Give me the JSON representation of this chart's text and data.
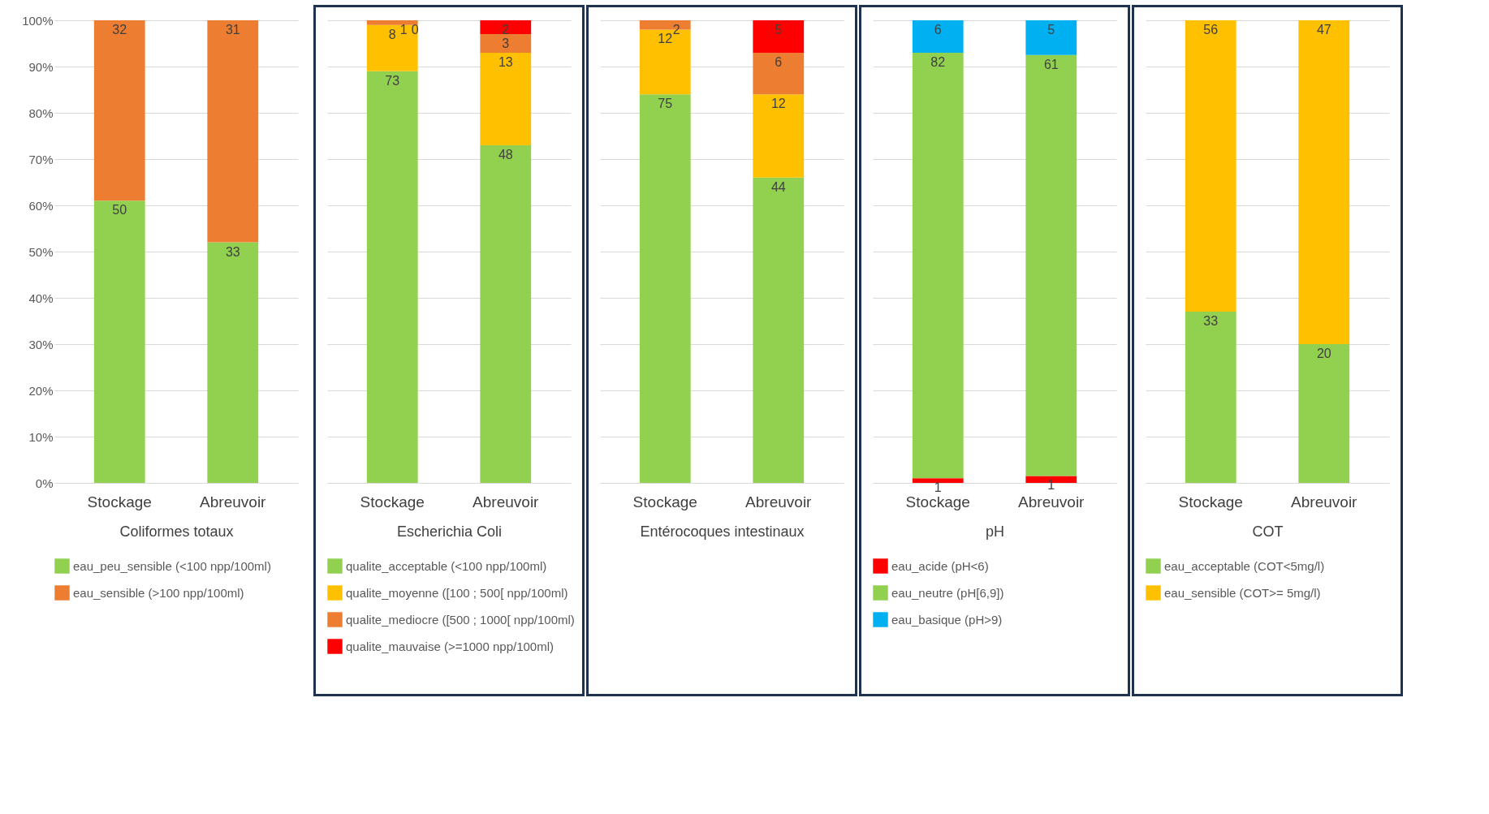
{
  "chart_data": [
    {
      "type": "bar",
      "stacked": true,
      "xlabel": "Coliformes totaux",
      "categories": [
        "Stockage",
        "Abreuvoir"
      ],
      "ylim": [
        0,
        100
      ],
      "yticks": [
        {
          "value": 0,
          "label": "0%"
        },
        {
          "value": 10,
          "label": "10%"
        },
        {
          "value": 20,
          "label": "20%"
        },
        {
          "value": 30,
          "label": "30%"
        },
        {
          "value": 40,
          "label": "40%"
        },
        {
          "value": 50,
          "label": "50%"
        },
        {
          "value": 60,
          "label": "60%"
        },
        {
          "value": 70,
          "label": "70%"
        },
        {
          "value": 80,
          "label": "80%"
        },
        {
          "value": 90,
          "label": "90%"
        },
        {
          "value": 100,
          "label": "100%"
        }
      ],
      "grid": "y",
      "legend": "bottom",
      "series": [
        {
          "name": "eau_peu_sensible (<100 npp/100ml)",
          "color": "#92d050",
          "values": [
            61,
            52
          ]
        },
        {
          "name": "eau_sensible (>100 npp/100ml)",
          "color": "#ed7d31",
          "values": [
            39,
            48
          ]
        }
      ],
      "annotations": [
        {
          "text": "50",
          "x": "Stockage",
          "y": 61
        },
        {
          "text": "32",
          "x": "Stockage",
          "y": 100
        },
        {
          "text": "33",
          "x": "Abreuvoir",
          "y": 52
        },
        {
          "text": "31",
          "x": "Abreuvoir",
          "y": 100
        }
      ]
    },
    {
      "type": "bar",
      "stacked": true,
      "xlabel": "Escherichia Coli",
      "categories": [
        "Stockage",
        "Abreuvoir"
      ],
      "ylim": [
        0,
        100
      ],
      "yticks": [
        0,
        10,
        20,
        30,
        40,
        50,
        60,
        70,
        80,
        90,
        100
      ],
      "tick_labels": "x",
      "grid": "y",
      "legend": "bottom",
      "series": [
        {
          "name": "qualite_acceptable (<100 npp/100ml)",
          "color": "#92d050",
          "values": [
            89,
            73
          ]
        },
        {
          "name": "qualite_moyenne ([100 ; 500[ npp/100ml)",
          "color": "#ffc000",
          "values": [
            10,
            20
          ]
        },
        {
          "name": "qualite_mediocre ([500 ; 1000[ npp/100ml)",
          "color": "#ed7d31",
          "values": [
            1,
            4
          ]
        },
        {
          "name": "qualite_mauvaise (>=1000 npp/100ml)",
          "color": "#ff0000",
          "values": [
            0,
            3
          ]
        }
      ],
      "annotations": [
        {
          "text": "73",
          "x": "Stockage",
          "y": 89
        },
        {
          "text": "8",
          "x": "Stockage",
          "y": 99
        },
        {
          "text": "1",
          "x": "Stockage",
          "y": 100
        },
        {
          "text": "0",
          "x": "Stockage",
          "y": 100
        },
        {
          "text": "48",
          "x": "Abreuvoir",
          "y": 73
        },
        {
          "text": "13",
          "x": "Abreuvoir",
          "y": 93
        },
        {
          "text": "3",
          "x": "Abreuvoir",
          "y": 97
        },
        {
          "text": "2",
          "x": "Abreuvoir",
          "y": 100
        }
      ]
    },
    {
      "type": "bar",
      "stacked": true,
      "xlabel": "Entérocoques intestinaux",
      "categories": [
        "Stockage",
        "Abreuvoir"
      ],
      "ylim": [
        0,
        100
      ],
      "yticks": [
        0,
        10,
        20,
        30,
        40,
        50,
        60,
        70,
        80,
        90,
        100
      ],
      "tick_labels": "x",
      "grid": "y",
      "series": [
        {
          "color": "#92d050",
          "values": [
            84,
            66
          ]
        },
        {
          "color": "#ffc000",
          "values": [
            14,
            18
          ]
        },
        {
          "color": "#ed7d31",
          "values": [
            2,
            9
          ]
        },
        {
          "color": "#ff0000",
          "values": [
            null,
            7
          ]
        }
      ],
      "annotations": [
        {
          "text": "75",
          "x": "Stockage",
          "y": 84
        },
        {
          "text": "12",
          "x": "Stockage",
          "y": 98
        },
        {
          "text": "2",
          "x": "Stockage",
          "y": 100
        },
        {
          "text": "44",
          "x": "Abreuvoir",
          "y": 66
        },
        {
          "text": "12",
          "x": "Abreuvoir",
          "y": 84
        },
        {
          "text": "6",
          "x": "Abreuvoir",
          "y": 93
        },
        {
          "text": "5",
          "x": "Abreuvoir",
          "y": 100
        }
      ]
    },
    {
      "type": "bar",
      "stacked": true,
      "xlabel": "pH",
      "categories": [
        "Stockage",
        "Abreuvoir"
      ],
      "ylim": [
        0,
        100
      ],
      "yticks": [
        0,
        10,
        20,
        30,
        40,
        50,
        60,
        70,
        80,
        90,
        100
      ],
      "tick_labels": "x",
      "grid": "y",
      "legend": "bottom",
      "series": [
        {
          "name": "eau_acide (pH<6)",
          "color": "#ff0000",
          "values": [
            1,
            1.5
          ]
        },
        {
          "name": "eau_neutre (pH[6,9])",
          "color": "#92d050",
          "values": [
            92,
            91
          ]
        },
        {
          "name": "eau_basique (pH>9)",
          "color": "#00b0f0",
          "values": [
            7,
            7.5
          ]
        }
      ],
      "annotations": [
        {
          "text": "1",
          "x": "Stockage",
          "y": 1
        },
        {
          "text": "82",
          "x": "Stockage",
          "y": 93
        },
        {
          "text": "6",
          "x": "Stockage",
          "y": 100
        },
        {
          "text": "1",
          "x": "Abreuvoir",
          "y": 1.5
        },
        {
          "text": "61",
          "x": "Abreuvoir",
          "y": 92.5
        },
        {
          "text": "5",
          "x": "Abreuvoir",
          "y": 100
        }
      ]
    },
    {
      "type": "bar",
      "stacked": true,
      "xlabel": "COT",
      "categories": [
        "Stockage",
        "Abreuvoir"
      ],
      "ylim": [
        0,
        100
      ],
      "yticks": [
        0,
        10,
        20,
        30,
        40,
        50,
        60,
        70,
        80,
        90,
        100
      ],
      "tick_labels": "x",
      "grid": "y",
      "legend": "bottom",
      "series": [
        {
          "name": "eau_acceptable (COT<5mg/l)",
          "color": "#92d050",
          "values": [
            37,
            30
          ]
        },
        {
          "name": "eau_sensible (COT>= 5mg/l)",
          "color": "#ffc000",
          "values": [
            63,
            70
          ]
        }
      ],
      "annotations": [
        {
          "text": "33",
          "x": "Stockage",
          "y": 37
        },
        {
          "text": "56",
          "x": "Stockage",
          "y": 100
        },
        {
          "text": "20",
          "x": "Abreuvoir",
          "y": 30
        },
        {
          "text": "47",
          "x": "Abreuvoir",
          "y": 100
        }
      ]
    }
  ]
}
